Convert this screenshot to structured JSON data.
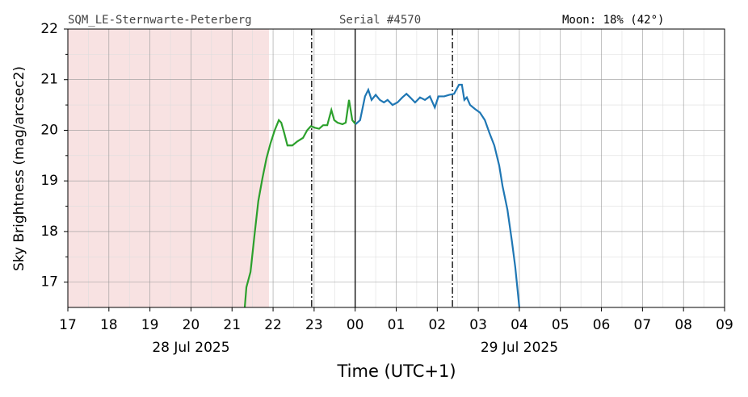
{
  "chart_data": {
    "type": "line",
    "header_left": "SQM_LE-Sternwarte-Peterberg",
    "header_center": "Serial #4570",
    "header_right": "Moon: 18% (42°)",
    "xlabel": "Time (UTC+1)",
    "ylabel": "Sky Brightness (mag/arcsec2)",
    "xlim": [
      17,
      33
    ],
    "ylim": [
      16.5,
      22
    ],
    "xticks": [
      {
        "value": 17,
        "label": "17"
      },
      {
        "value": 18,
        "label": "18"
      },
      {
        "value": 19,
        "label": "19"
      },
      {
        "value": 20,
        "label": "20"
      },
      {
        "value": 21,
        "label": "21"
      },
      {
        "value": 22,
        "label": "22"
      },
      {
        "value": 23,
        "label": "23"
      },
      {
        "value": 24,
        "label": "00"
      },
      {
        "value": 25,
        "label": "01"
      },
      {
        "value": 26,
        "label": "02"
      },
      {
        "value": 27,
        "label": "03"
      },
      {
        "value": 28,
        "label": "04"
      },
      {
        "value": 29,
        "label": "05"
      },
      {
        "value": 30,
        "label": "06"
      },
      {
        "value": 31,
        "label": "07"
      },
      {
        "value": 32,
        "label": "08"
      },
      {
        "value": 33,
        "label": "09"
      }
    ],
    "xminor": [
      17.5,
      18.5,
      19.5,
      20.5,
      21.5,
      22.5,
      23.5,
      24.5,
      25.5,
      26.5,
      27.5,
      28.5,
      29.5,
      30.5,
      31.5,
      32.5
    ],
    "yticks": [
      17,
      18,
      19,
      20,
      21,
      22
    ],
    "yminor": [
      17.5,
      18.5,
      19.5,
      20.5,
      21.5
    ],
    "date_labels": [
      {
        "value": 20,
        "label": "28 Jul 2025"
      },
      {
        "value": 28,
        "label": "29 Jul 2025"
      }
    ],
    "grid": true,
    "shaded": {
      "from": 17,
      "to": 21.9,
      "color": "#f8e2e2"
    },
    "vlines": [
      {
        "value": 22.94,
        "style": "dashdot"
      },
      {
        "value": 24,
        "style": "solid"
      },
      {
        "value": 26.37,
        "style": "dashdot"
      }
    ],
    "series": [
      {
        "color": "#2ca02c",
        "x": [
          21.31,
          21.35,
          21.45,
          21.55,
          21.64,
          21.74,
          21.84,
          21.94,
          22.04,
          22.14,
          22.2,
          22.27,
          22.35,
          22.47,
          22.59,
          22.73,
          22.83,
          22.92,
          23.02,
          23.12,
          23.22,
          23.32,
          23.42,
          23.49,
          23.57,
          23.69,
          23.77,
          23.85,
          23.93,
          24.01
        ],
        "values": [
          16.5,
          16.9,
          17.2,
          17.95,
          18.6,
          19.05,
          19.45,
          19.75,
          20.0,
          20.2,
          20.15,
          19.95,
          19.7,
          19.7,
          19.78,
          19.85,
          20.0,
          20.08,
          20.05,
          20.03,
          20.1,
          20.1,
          20.4,
          20.2,
          20.15,
          20.12,
          20.15,
          20.6,
          20.2,
          20.12
        ]
      },
      {
        "color": "#1f77b4",
        "x": [
          24.01,
          24.12,
          24.24,
          24.32,
          24.4,
          24.5,
          24.6,
          24.7,
          24.79,
          24.91,
          25.03,
          25.15,
          25.25,
          25.34,
          25.46,
          25.58,
          25.7,
          25.82,
          25.94,
          26.03,
          26.17,
          26.29,
          26.41,
          26.53,
          26.6,
          26.66,
          26.72,
          26.8,
          26.92,
          27.04,
          27.16,
          27.27,
          27.39,
          27.51,
          27.59,
          27.71,
          27.82,
          27.9,
          28.0
        ],
        "values": [
          20.12,
          20.2,
          20.67,
          20.8,
          20.6,
          20.7,
          20.6,
          20.55,
          20.6,
          20.5,
          20.55,
          20.65,
          20.72,
          20.65,
          20.55,
          20.65,
          20.6,
          20.67,
          20.45,
          20.67,
          20.67,
          20.7,
          20.72,
          20.9,
          20.9,
          20.6,
          20.65,
          20.5,
          20.42,
          20.35,
          20.2,
          19.95,
          19.7,
          19.3,
          18.9,
          18.43,
          17.8,
          17.3,
          16.5
        ]
      }
    ]
  }
}
